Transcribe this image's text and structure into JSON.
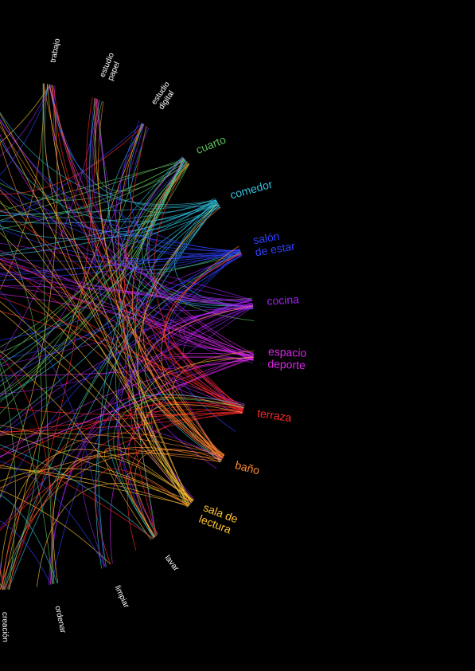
{
  "nodes": [
    {
      "label": [
        "trabajo"
      ],
      "color": "#ffffff"
    },
    {
      "label": [
        "estudio",
        "papel"
      ],
      "color": "#ffffff"
    },
    {
      "label": [
        "estudio",
        "digital"
      ],
      "color": "#ffffff"
    },
    {
      "label": [
        "cuarto"
      ],
      "color": "#5cc05c"
    },
    {
      "label": [
        "comedor"
      ],
      "color": "#2fc0e0"
    },
    {
      "label": [
        "salón",
        "de estar"
      ],
      "color": "#3040ff"
    },
    {
      "label": [
        "cocina"
      ],
      "color": "#a020f0"
    },
    {
      "label": [
        "espacio",
        "deporte"
      ],
      "color": "#d828e8"
    },
    {
      "label": [
        "terraza"
      ],
      "color": "#ff2828"
    },
    {
      "label": [
        "baño"
      ],
      "color": "#ff8a30"
    },
    {
      "label": [
        "sala de",
        "lectura"
      ],
      "color": "#ffc030"
    },
    {
      "label": [
        "lavar"
      ],
      "color": "#ffffff"
    },
    {
      "label": [
        "limpiar"
      ],
      "color": "#ffffff"
    },
    {
      "label": [
        "ordenar"
      ],
      "color": "#ffffff"
    },
    {
      "label": [
        "creación"
      ],
      "color": "#ffffff"
    }
  ]
}
